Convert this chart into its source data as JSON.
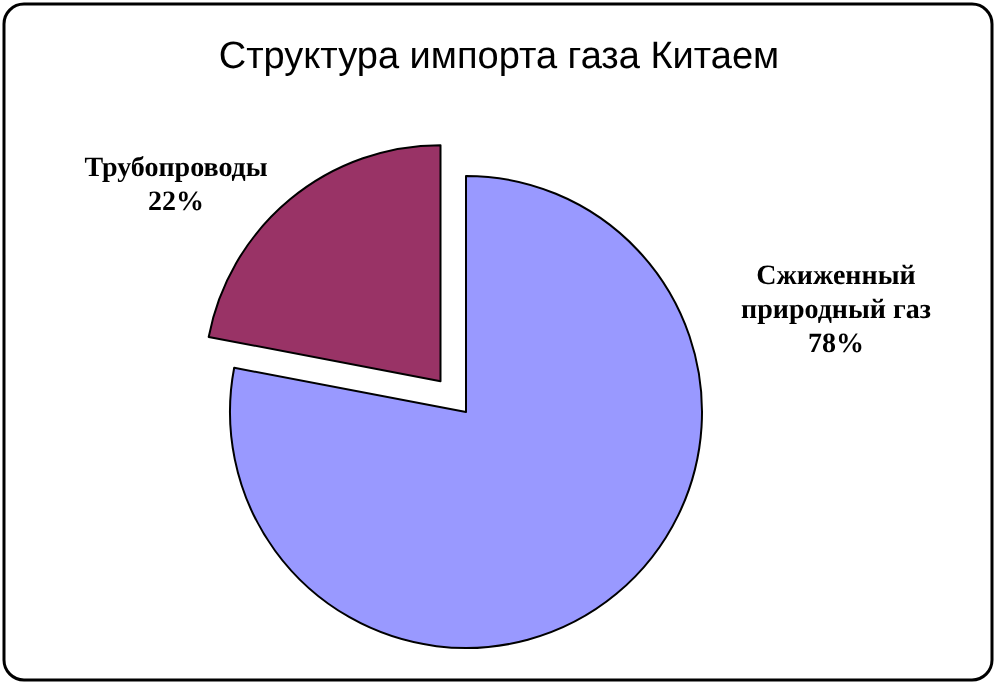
{
  "chart_data": {
    "type": "pie",
    "title": "Структура импорта газа Китаем",
    "categories": [
      "Трубопроводы",
      "Сжиженный природный газ"
    ],
    "values": [
      22,
      78
    ],
    "colors": [
      "#993366",
      "#9999ff"
    ],
    "value_labels": [
      "22%",
      "78%"
    ]
  }
}
